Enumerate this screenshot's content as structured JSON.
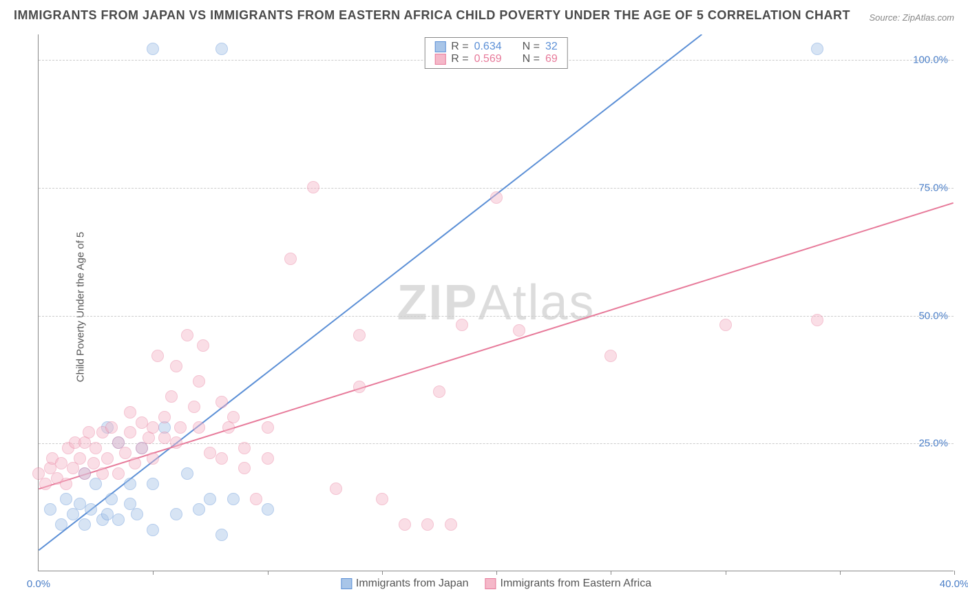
{
  "title": "IMMIGRANTS FROM JAPAN VS IMMIGRANTS FROM EASTERN AFRICA CHILD POVERTY UNDER THE AGE OF 5 CORRELATION CHART",
  "source": "Source: ZipAtlas.com",
  "ylabel": "Child Poverty Under the Age of 5",
  "watermark_bold": "ZIP",
  "watermark_light": "Atlas",
  "chart": {
    "type": "scatter",
    "xlim": [
      0,
      40
    ],
    "ylim": [
      0,
      105
    ],
    "xticks": [
      0,
      5,
      10,
      15,
      20,
      25,
      30,
      35,
      40
    ],
    "xtick_labels": {
      "0": "0.0%",
      "40": "40.0%"
    },
    "yticks": [
      25,
      50,
      75,
      100
    ],
    "ytick_labels": {
      "25": "25.0%",
      "50": "50.0%",
      "75": "75.0%",
      "100": "100.0%"
    },
    "grid_color": "#cccccc",
    "background_color": "#ffffff",
    "axis_color": "#888888",
    "tick_label_color": "#4a7ec7",
    "point_radius": 9,
    "point_opacity": 0.45,
    "line_width": 2
  },
  "series": [
    {
      "name": "Immigrants from Japan",
      "color": "#5b8fd6",
      "fill": "#a8c5e8",
      "border": "#5b8fd6",
      "R": "0.634",
      "N": "32",
      "trend": {
        "x1": 0,
        "y1": 4,
        "x2": 29,
        "y2": 105
      },
      "points": [
        [
          0.5,
          12
        ],
        [
          1,
          9
        ],
        [
          1.2,
          14
        ],
        [
          1.5,
          11
        ],
        [
          1.8,
          13
        ],
        [
          2,
          9
        ],
        [
          2,
          19
        ],
        [
          2.3,
          12
        ],
        [
          2.5,
          17
        ],
        [
          2.8,
          10
        ],
        [
          3,
          11
        ],
        [
          3,
          28
        ],
        [
          3.2,
          14
        ],
        [
          3.5,
          25
        ],
        [
          3.5,
          10
        ],
        [
          4,
          17
        ],
        [
          4,
          13
        ],
        [
          4.3,
          11
        ],
        [
          4.5,
          24
        ],
        [
          5,
          8
        ],
        [
          5,
          17
        ],
        [
          5.5,
          28
        ],
        [
          6,
          11
        ],
        [
          6.5,
          19
        ],
        [
          7,
          12
        ],
        [
          7.5,
          14
        ],
        [
          8,
          7
        ],
        [
          8.5,
          14
        ],
        [
          10,
          12
        ],
        [
          5,
          102
        ],
        [
          8,
          102
        ],
        [
          34,
          102
        ]
      ]
    },
    {
      "name": "Immigrants from Eastern Africa",
      "color": "#e77a9a",
      "fill": "#f5b8c9",
      "border": "#e77a9a",
      "R": "0.569",
      "N": "69",
      "trend": {
        "x1": 0,
        "y1": 16,
        "x2": 40,
        "y2": 72
      },
      "points": [
        [
          0,
          19
        ],
        [
          0.3,
          17
        ],
        [
          0.5,
          20
        ],
        [
          0.6,
          22
        ],
        [
          0.8,
          18
        ],
        [
          1,
          21
        ],
        [
          1.2,
          17
        ],
        [
          1.3,
          24
        ],
        [
          1.5,
          20
        ],
        [
          1.6,
          25
        ],
        [
          1.8,
          22
        ],
        [
          2,
          19
        ],
        [
          2,
          25
        ],
        [
          2.2,
          27
        ],
        [
          2.4,
          21
        ],
        [
          2.5,
          24
        ],
        [
          2.8,
          27
        ],
        [
          2.8,
          19
        ],
        [
          3,
          22
        ],
        [
          3.2,
          28
        ],
        [
          3.5,
          25
        ],
        [
          3.5,
          19
        ],
        [
          3.8,
          23
        ],
        [
          4,
          27
        ],
        [
          4,
          31
        ],
        [
          4.2,
          21
        ],
        [
          4.5,
          29
        ],
        [
          4.5,
          24
        ],
        [
          4.8,
          26
        ],
        [
          5,
          28
        ],
        [
          5,
          22
        ],
        [
          5.2,
          42
        ],
        [
          5.5,
          30
        ],
        [
          5.5,
          26
        ],
        [
          5.8,
          34
        ],
        [
          6,
          40
        ],
        [
          6,
          25
        ],
        [
          6.2,
          28
        ],
        [
          6.5,
          46
        ],
        [
          6.8,
          32
        ],
        [
          7,
          28
        ],
        [
          7,
          37
        ],
        [
          7.2,
          44
        ],
        [
          7.5,
          23
        ],
        [
          8,
          22
        ],
        [
          8,
          33
        ],
        [
          8.3,
          28
        ],
        [
          8.5,
          30
        ],
        [
          9,
          20
        ],
        [
          9,
          24
        ],
        [
          9.5,
          14
        ],
        [
          10,
          22
        ],
        [
          10,
          28
        ],
        [
          11,
          61
        ],
        [
          12,
          75
        ],
        [
          13,
          16
        ],
        [
          14,
          46
        ],
        [
          14,
          36
        ],
        [
          15,
          14
        ],
        [
          16,
          9
        ],
        [
          17,
          9
        ],
        [
          17.5,
          35
        ],
        [
          18,
          9
        ],
        [
          18.5,
          48
        ],
        [
          20,
          73
        ],
        [
          21,
          47
        ],
        [
          25,
          42
        ],
        [
          30,
          48
        ],
        [
          34,
          49
        ]
      ]
    }
  ],
  "legend_top": {
    "r_label": "R =",
    "n_label": "N ="
  },
  "legend_bottom": {
    "label1": "Immigrants from Japan",
    "label2": "Immigrants from Eastern Africa"
  }
}
